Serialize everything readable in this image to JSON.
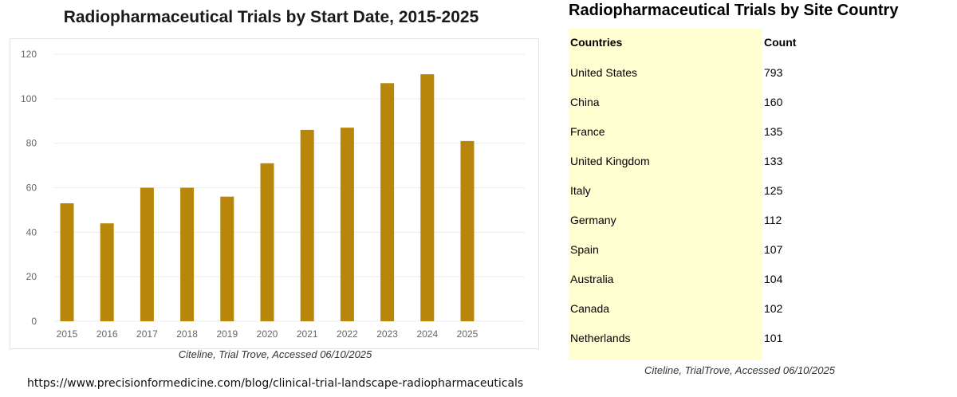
{
  "left_chart": {
    "title": "Radiopharmaceutical Trials by Start Date, 2015-2025",
    "source": "Citeline, Trial Trove, Accessed 06/10/2025"
  },
  "chart_data": {
    "type": "bar",
    "title": "Radiopharmaceutical Trials by Start Date, 2015-2025",
    "categories": [
      "2015",
      "2016",
      "2017",
      "2018",
      "2019",
      "2020",
      "2021",
      "2022",
      "2023",
      "2024",
      "2025"
    ],
    "values": [
      53,
      44,
      60,
      60,
      56,
      71,
      86,
      87,
      107,
      111,
      81
    ],
    "xlabel": "",
    "ylabel": "",
    "ylim": [
      0,
      120
    ],
    "yticks": [
      0,
      20,
      40,
      60,
      80,
      100,
      120
    ],
    "grid": true,
    "legend": "none",
    "bar_color": "#b8860b",
    "grid_color": "#ececec",
    "tick_color": "#666666"
  },
  "right_table": {
    "title": "Radiopharmaceutical Trials by Site Country",
    "header": {
      "country": "Countries",
      "count": "Count"
    },
    "rows": [
      {
        "country": "United States",
        "count": "793"
      },
      {
        "country": "China",
        "count": "160"
      },
      {
        "country": "France",
        "count": "135"
      },
      {
        "country": "United Kingdom",
        "count": "133"
      },
      {
        "country": "Italy",
        "count": "125"
      },
      {
        "country": "Germany",
        "count": "112"
      },
      {
        "country": "Spain",
        "count": "107"
      },
      {
        "country": "Australia",
        "count": "104"
      },
      {
        "country": "Canada",
        "count": "102"
      },
      {
        "country": "Netherlands",
        "count": "101"
      }
    ],
    "source": "Citeline, TrialTrove, Accessed 06/10/2025",
    "highlight_color": "#ffffd2"
  },
  "footer": {
    "url": "https://www.precisionformedicine.com/blog/clinical-trial-landscape-radiopharmaceuticals"
  }
}
